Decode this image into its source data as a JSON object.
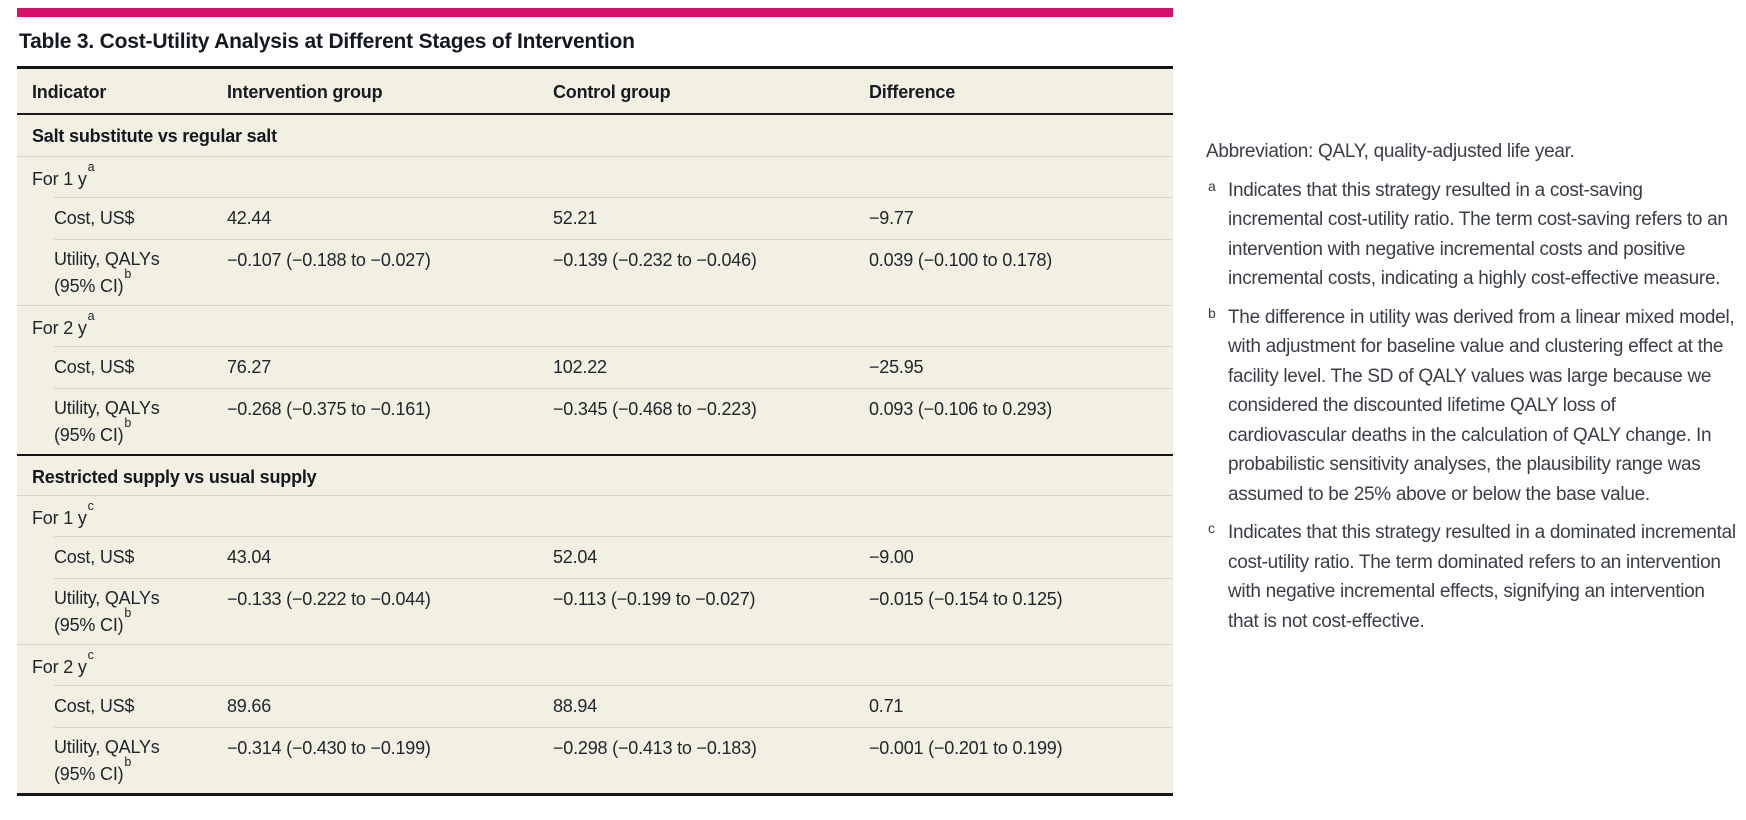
{
  "colors": {
    "accent_bar": "#d8106c",
    "table_background": "#f2f0e3",
    "rule_light": "#d8d6c8",
    "rule_dark": "#161616",
    "text": "#21262d"
  },
  "table": {
    "title": "Table 3. Cost-Utility Analysis at Different Stages of Intervention",
    "columns": [
      "Indicator",
      "Intervention group",
      "Control group",
      "Difference"
    ],
    "sections": [
      {
        "header": "Salt substitute vs regular salt",
        "subsections": [
          {
            "label": "For 1 y",
            "marker": "a",
            "rows": [
              {
                "label_line1": "Cost, US$",
                "label_line2": "",
                "marker": "",
                "values": [
                  "42.44",
                  "52.21",
                  "−9.77"
                ]
              },
              {
                "label_line1": "Utility, QALYs",
                "label_line2": "(95% CI)",
                "marker": "b",
                "values": [
                  "−0.107 (−0.188 to −0.027)",
                  "−0.139 (−0.232 to −0.046)",
                  "0.039 (−0.100 to 0.178)"
                ]
              }
            ]
          },
          {
            "label": "For 2 y",
            "marker": "a",
            "rows": [
              {
                "label_line1": "Cost, US$",
                "label_line2": "",
                "marker": "",
                "values": [
                  "76.27",
                  "102.22",
                  "−25.95"
                ]
              },
              {
                "label_line1": "Utility, QALYs",
                "label_line2": "(95% CI)",
                "marker": "b",
                "values": [
                  "−0.268 (−0.375 to −0.161)",
                  "−0.345 (−0.468 to −0.223)",
                  "0.093 (−0.106 to 0.293)"
                ]
              }
            ]
          }
        ]
      },
      {
        "header": "Restricted supply vs usual supply",
        "subsections": [
          {
            "label": "For 1 y",
            "marker": "c",
            "rows": [
              {
                "label_line1": "Cost, US$",
                "label_line2": "",
                "marker": "",
                "values": [
                  "43.04",
                  "52.04",
                  "−9.00"
                ]
              },
              {
                "label_line1": "Utility, QALYs",
                "label_line2": "(95% CI)",
                "marker": "b",
                "values": [
                  "−0.133 (−0.222 to −0.044)",
                  "−0.113 (−0.199 to −0.027)",
                  "−0.015 (−0.154 to 0.125)"
                ]
              }
            ]
          },
          {
            "label": "For 2 y",
            "marker": "c",
            "rows": [
              {
                "label_line1": "Cost, US$",
                "label_line2": "",
                "marker": "",
                "values": [
                  "89.66",
                  "88.94",
                  "0.71"
                ]
              },
              {
                "label_line1": "Utility, QALYs",
                "label_line2": "(95% CI)",
                "marker": "b",
                "values": [
                  "−0.314 (−0.430 to −0.199)",
                  "−0.298 (−0.413 to −0.183)",
                  "−0.001 (−0.201 to 0.199)"
                ]
              }
            ]
          }
        ]
      }
    ]
  },
  "footnotes": {
    "abbreviation": "Abbreviation: QALY, quality-adjusted life year.",
    "items": [
      {
        "marker": "a",
        "text": "Indicates that this strategy resulted in a cost-saving incremental cost-utility ratio. The term cost-saving refers to an intervention with negative incremental costs and positive incremental costs, indicating a highly cost-effective measure."
      },
      {
        "marker": "b",
        "text": "The difference in utility was derived from a linear mixed model, with adjustment for baseline value and clustering effect at the facility level. The SD of QALY values was large because we considered the discounted lifetime QALY loss of cardiovascular deaths in the calculation of QALY change. In probabilistic sensitivity analyses, the plausibility range was assumed to be 25% above or below the base value."
      },
      {
        "marker": "c",
        "text": "Indicates that this strategy resulted in a dominated incremental cost-utility ratio. The term dominated refers to an intervention with negative incremental effects, signifying an intervention that is not cost-effective."
      }
    ]
  }
}
